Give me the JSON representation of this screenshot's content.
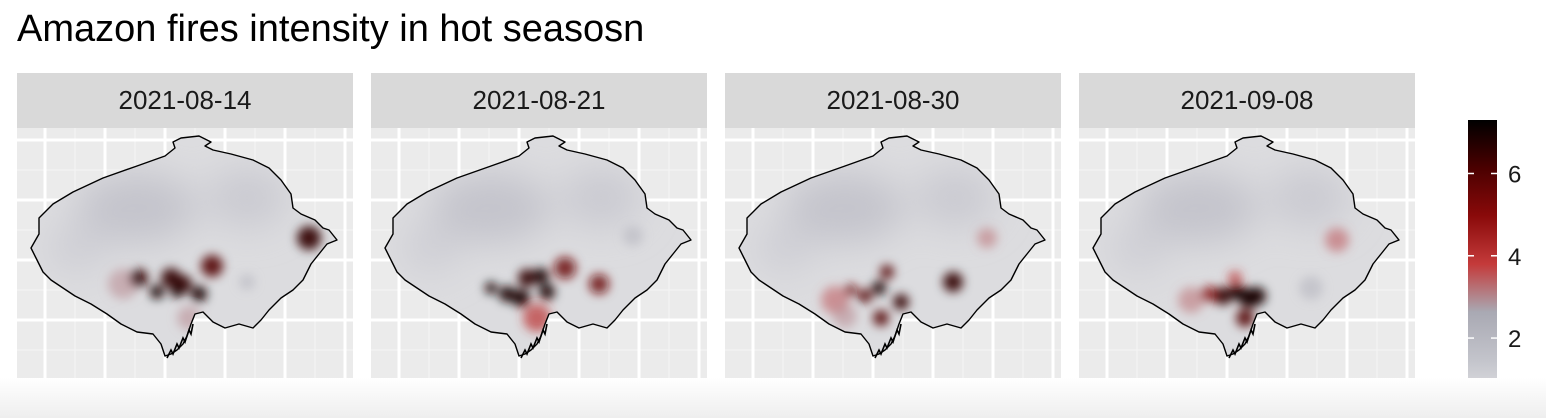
{
  "title": "Amazon fires intensity in hot seasosn",
  "chart_data": {
    "type": "heatmap",
    "title": "Amazon fires intensity in hot seasosn",
    "facets": [
      "2021-08-14",
      "2021-08-21",
      "2021-08-30",
      "2021-09-08"
    ],
    "legend": {
      "position": "right",
      "ticks": [
        2,
        4,
        6
      ],
      "range": [
        0.3,
        7.3
      ],
      "colors": [
        "#e8e8ea",
        "#c3c4cb",
        "#a9a9b3",
        "#c43a3a",
        "#8a0a0a",
        "#4a0000",
        "#000000"
      ]
    },
    "grid": true,
    "background": "#ebebeb"
  }
}
